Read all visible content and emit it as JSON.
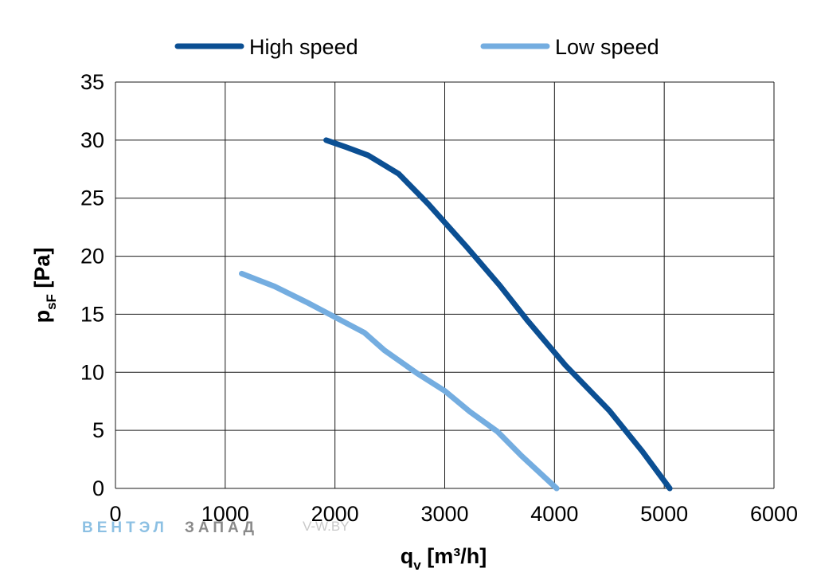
{
  "chart_data": {
    "type": "line",
    "title": "",
    "xlabel": {
      "main": "q",
      "sub": "v",
      "unit": " [m³/h]"
    },
    "ylabel": {
      "main": "p",
      "sub": "sF",
      "unit": " [Pa]"
    },
    "xlim": [
      0,
      6000
    ],
    "ylim": [
      0,
      35
    ],
    "xticks": [
      0,
      1000,
      2000,
      3000,
      4000,
      5000,
      6000
    ],
    "yticks": [
      0,
      5,
      10,
      15,
      20,
      25,
      30,
      35
    ],
    "grid": true,
    "legend_position": "top",
    "series": [
      {
        "name": "High speed",
        "color": "#0b4f93",
        "x": [
          1920,
          2100,
          2300,
          2580,
          2850,
          3200,
          3500,
          3750,
          4100,
          4500,
          4800,
          5050
        ],
        "y": [
          30,
          29.4,
          28.7,
          27.1,
          24.5,
          20.8,
          17.5,
          14.5,
          10.6,
          6.7,
          3.2,
          0
        ]
      },
      {
        "name": "Low speed",
        "color": "#74ade0",
        "x": [
          1150,
          1450,
          1750,
          2050,
          2270,
          2450,
          2750,
          3000,
          3230,
          3480,
          3700,
          4020
        ],
        "y": [
          18.5,
          17.4,
          16.0,
          14.5,
          13.4,
          11.9,
          9.9,
          8.4,
          6.6,
          4.9,
          2.8,
          0
        ]
      }
    ]
  },
  "watermark": {
    "brand_part1": "ВЕНТЭЛ",
    "brand_part2": "ЗАПАД",
    "site": "V-W.BY"
  }
}
